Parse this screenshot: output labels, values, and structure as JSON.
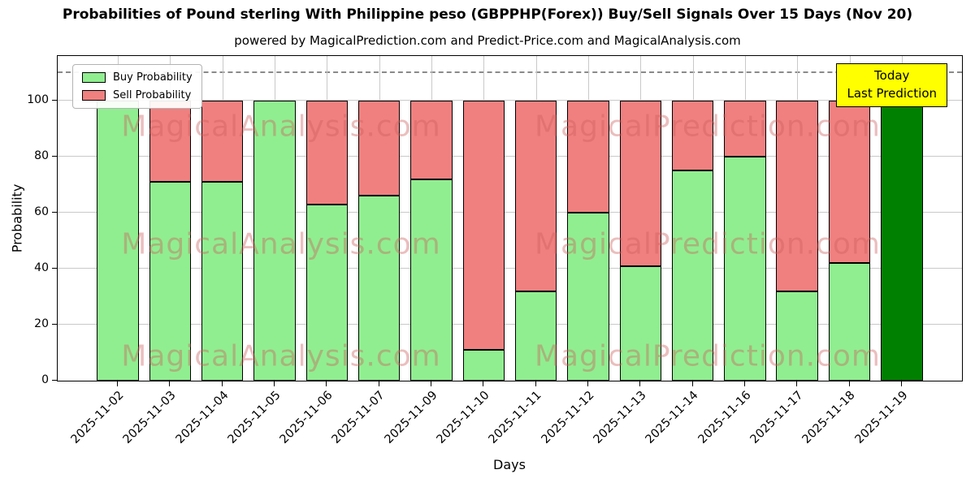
{
  "annotation": {
    "line1": "Today",
    "line2": "Last Prediction",
    "bg_color": "#ffff00"
  },
  "watermarks": {
    "texts": [
      "MagicalAnalysis.com",
      "MagicalPrediction.com"
    ],
    "color": "rgba(205,92,92,0.40)"
  },
  "chart_data": {
    "type": "bar",
    "stacked": true,
    "title": "Probabilities of Pound sterling With Philippine peso (GBPPHP(Forex)) Buy/Sell Signals Over 15 Days (Nov 20)",
    "subtitle": "powered by MagicalPrediction.com and Predict-Price.com and MagicalAnalysis.com",
    "xlabel": "Days",
    "ylabel": "Probability",
    "ylim": [
      0,
      116
    ],
    "yticks": [
      0,
      20,
      40,
      60,
      80,
      100
    ],
    "dashed_line_y": 110,
    "grid": true,
    "legend_position": "upper-left",
    "categories": [
      "2025-11-02",
      "2025-11-03",
      "2025-11-04",
      "2025-11-05",
      "2025-11-06",
      "2025-11-07",
      "2025-11-09",
      "2025-11-10",
      "2025-11-11",
      "2025-11-12",
      "2025-11-13",
      "2025-11-14",
      "2025-11-16",
      "2025-11-17",
      "2025-11-18",
      "2025-11-19"
    ],
    "series": [
      {
        "name": "Buy Probability",
        "color": "#90ee90",
        "values": [
          100,
          71,
          71,
          100,
          63,
          66,
          72,
          11,
          32,
          60,
          41,
          75,
          80,
          32,
          42,
          0
        ]
      },
      {
        "name": "Sell Probability",
        "color": "#f08080",
        "values": [
          0,
          29,
          29,
          0,
          37,
          34,
          28,
          89,
          68,
          40,
          59,
          25,
          20,
          68,
          58,
          0
        ]
      }
    ],
    "today_bar": {
      "category": "2025-11-19",
      "index": 15,
      "value": 110,
      "color": "#008000"
    }
  }
}
